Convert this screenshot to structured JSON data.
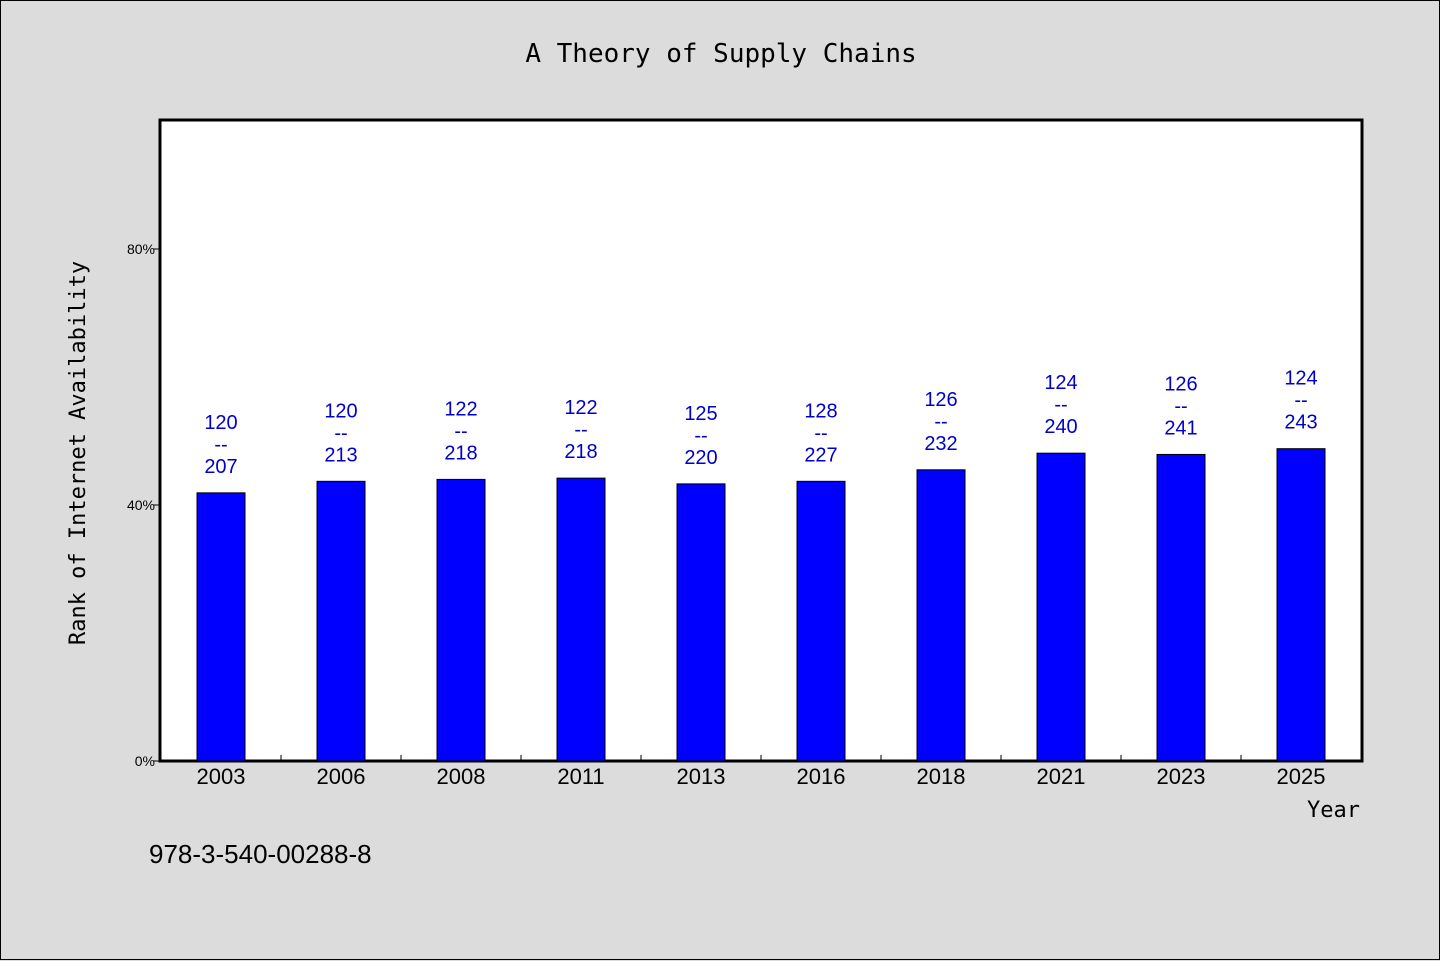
{
  "chart_data": {
    "type": "bar",
    "title": "A Theory of Supply Chains",
    "xlabel": "Year",
    "ylabel": "Rank of Internet Availability",
    "categories": [
      "2003",
      "2006",
      "2008",
      "2011",
      "2013",
      "2016",
      "2018",
      "2021",
      "2023",
      "2025"
    ],
    "values": [
      41.9,
      43.7,
      44.0,
      44.2,
      43.3,
      43.7,
      45.5,
      48.1,
      47.9,
      48.8
    ],
    "rank_labels": [
      {
        "rank": "120",
        "sep": "--",
        "total": "207"
      },
      {
        "rank": "120",
        "sep": "--",
        "total": "213"
      },
      {
        "rank": "122",
        "sep": "--",
        "total": "218"
      },
      {
        "rank": "122",
        "sep": "--",
        "total": "218"
      },
      {
        "rank": "125",
        "sep": "--",
        "total": "220"
      },
      {
        "rank": "128",
        "sep": "--",
        "total": "227"
      },
      {
        "rank": "126",
        "sep": "--",
        "total": "232"
      },
      {
        "rank": "124",
        "sep": "--",
        "total": "240"
      },
      {
        "rank": "126",
        "sep": "--",
        "total": "241"
      },
      {
        "rank": "124",
        "sep": "--",
        "total": "243"
      }
    ],
    "ylim": [
      0,
      100
    ],
    "yticks": [
      0,
      40,
      80
    ],
    "ytick_labels": [
      "0%",
      "40%",
      "80%"
    ],
    "grid": false,
    "bar_color": "#0000ff",
    "label_color": "#0000cc"
  },
  "footer": {
    "isbn": "978-3-540-00288-8"
  }
}
